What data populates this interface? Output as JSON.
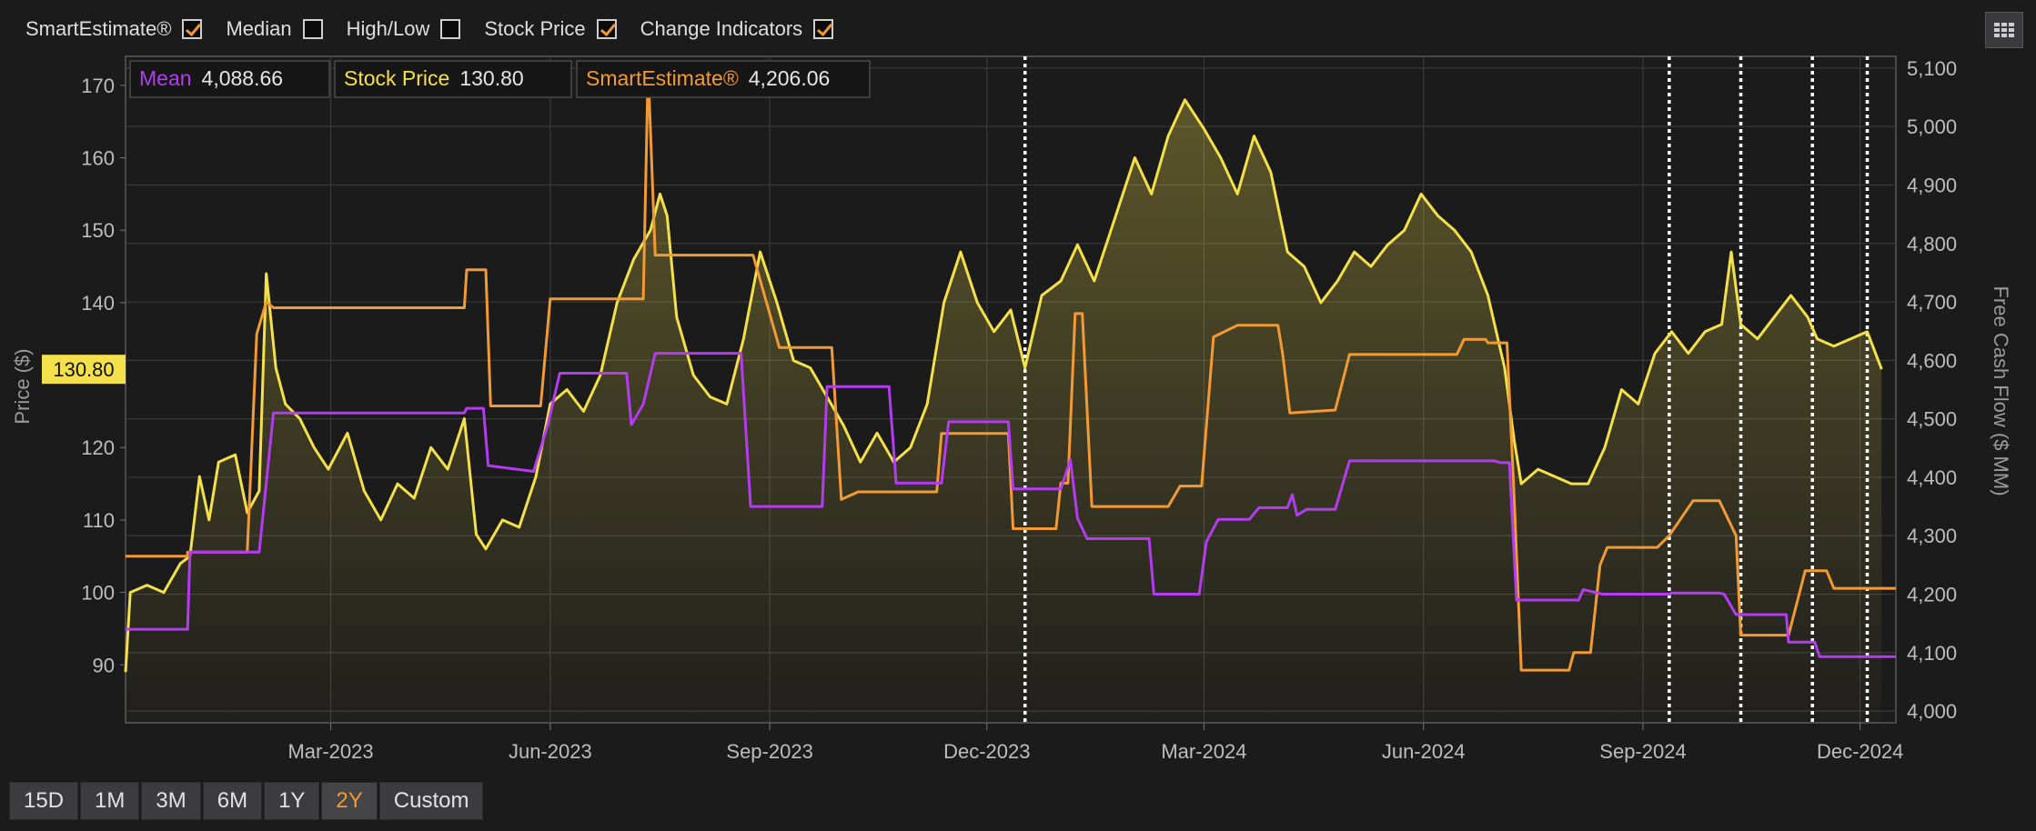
{
  "toolbar": {
    "items": [
      {
        "label": "SmartEstimate®",
        "checked": true
      },
      {
        "label": "Median",
        "checked": false
      },
      {
        "label": "High/Low",
        "checked": false
      },
      {
        "label": "Stock Price",
        "checked": true
      },
      {
        "label": "Change Indicators",
        "checked": true
      }
    ],
    "grid_icon": "grid-icon"
  },
  "legend": [
    {
      "name": "Mean",
      "value": "4,088.66",
      "color": "#b33bf0"
    },
    {
      "name": "Stock Price",
      "value": "130.80",
      "color": "#f4e04a"
    },
    {
      "name": "SmartEstimate®",
      "value": "4,206.06",
      "color": "#f29a34"
    }
  ],
  "price_tag": "130.80",
  "range_buttons": [
    {
      "label": "15D",
      "active": false
    },
    {
      "label": "1M",
      "active": false
    },
    {
      "label": "3M",
      "active": false
    },
    {
      "label": "6M",
      "active": false
    },
    {
      "label": "1Y",
      "active": false
    },
    {
      "label": "2Y",
      "active": true
    },
    {
      "label": "Custom",
      "active": false
    }
  ],
  "chart_data": {
    "type": "line",
    "ylabel_left": "Price ($)",
    "ylabel_right": "Free Cash Flow ($ MM)",
    "x_range": [
      "2022-12-05",
      "2024-12-16"
    ],
    "y_left_range": [
      82,
      174
    ],
    "y_right_range": [
      3980,
      5120
    ],
    "y_left_ticks": [
      "90",
      "100",
      "110",
      "120",
      "130",
      "140",
      "150",
      "160",
      "170"
    ],
    "y_right_ticks": [
      "4,000",
      "4,100",
      "4,200",
      "4,300",
      "4,400",
      "4,500",
      "4,600",
      "4,700",
      "4,800",
      "4,900",
      "5,000",
      "5,100"
    ],
    "x_ticks": [
      {
        "date": "2023-03-01",
        "label": "Mar-2023"
      },
      {
        "date": "2023-06-01",
        "label": "Jun-2023"
      },
      {
        "date": "2023-09-01",
        "label": "Sep-2023"
      },
      {
        "date": "2023-12-01",
        "label": "Dec-2023"
      },
      {
        "date": "2024-03-01",
        "label": "Mar-2024"
      },
      {
        "date": "2024-06-01",
        "label": "Jun-2024"
      },
      {
        "date": "2024-09-01",
        "label": "Sep-2024"
      },
      {
        "date": "2024-12-01",
        "label": "Dec-2024"
      }
    ],
    "change_indicator_dates": [
      "2023-12-17",
      "2024-09-12",
      "2024-10-12",
      "2024-11-11",
      "2024-12-04"
    ],
    "series": [
      {
        "name": "Stock Price",
        "axis": "left",
        "color": "#f4e04a",
        "fill": true,
        "points": [
          [
            "2022-12-05",
            89
          ],
          [
            "2022-12-07",
            100
          ],
          [
            "2022-12-14",
            101
          ],
          [
            "2022-12-21",
            100
          ],
          [
            "2022-12-28",
            104
          ],
          [
            "2023-01-01",
            105
          ],
          [
            "2023-01-05",
            116
          ],
          [
            "2023-01-09",
            110
          ],
          [
            "2023-01-13",
            118
          ],
          [
            "2023-01-20",
            119
          ],
          [
            "2023-01-25",
            111
          ],
          [
            "2023-01-30",
            114
          ],
          [
            "2023-02-02",
            144
          ],
          [
            "2023-02-06",
            131
          ],
          [
            "2023-02-10",
            126
          ],
          [
            "2023-02-16",
            124
          ],
          [
            "2023-02-22",
            120
          ],
          [
            "2023-02-28",
            117
          ],
          [
            "2023-03-08",
            122
          ],
          [
            "2023-03-15",
            114
          ],
          [
            "2023-03-22",
            110
          ],
          [
            "2023-03-29",
            115
          ],
          [
            "2023-04-05",
            113
          ],
          [
            "2023-04-12",
            120
          ],
          [
            "2023-04-19",
            117
          ],
          [
            "2023-04-26",
            124
          ],
          [
            "2023-05-01",
            108
          ],
          [
            "2023-05-05",
            106
          ],
          [
            "2023-05-12",
            110
          ],
          [
            "2023-05-19",
            109
          ],
          [
            "2023-05-26",
            116
          ],
          [
            "2023-06-01",
            126
          ],
          [
            "2023-06-08",
            128
          ],
          [
            "2023-06-15",
            125
          ],
          [
            "2023-06-22",
            130
          ],
          [
            "2023-06-29",
            140
          ],
          [
            "2023-07-06",
            146
          ],
          [
            "2023-07-13",
            150
          ],
          [
            "2023-07-17",
            155
          ],
          [
            "2023-07-20",
            152
          ],
          [
            "2023-07-24",
            138
          ],
          [
            "2023-07-31",
            130
          ],
          [
            "2023-08-07",
            127
          ],
          [
            "2023-08-14",
            126
          ],
          [
            "2023-08-21",
            135
          ],
          [
            "2023-08-28",
            147
          ],
          [
            "2023-09-04",
            140
          ],
          [
            "2023-09-11",
            132
          ],
          [
            "2023-09-18",
            131
          ],
          [
            "2023-09-25",
            127
          ],
          [
            "2023-10-02",
            123
          ],
          [
            "2023-10-09",
            118
          ],
          [
            "2023-10-16",
            122
          ],
          [
            "2023-10-23",
            118
          ],
          [
            "2023-10-30",
            120
          ],
          [
            "2023-11-06",
            126
          ],
          [
            "2023-11-13",
            140
          ],
          [
            "2023-11-20",
            147
          ],
          [
            "2023-11-27",
            140
          ],
          [
            "2023-12-04",
            136
          ],
          [
            "2023-12-11",
            139
          ],
          [
            "2023-12-17",
            131
          ],
          [
            "2023-12-24",
            141
          ],
          [
            "2024-01-01",
            143
          ],
          [
            "2024-01-08",
            148
          ],
          [
            "2024-01-15",
            143
          ],
          [
            "2024-01-22",
            150
          ],
          [
            "2024-02-01",
            160
          ],
          [
            "2024-02-08",
            155
          ],
          [
            "2024-02-15",
            163
          ],
          [
            "2024-02-22",
            168
          ],
          [
            "2024-03-01",
            164
          ],
          [
            "2024-03-08",
            160
          ],
          [
            "2024-03-15",
            155
          ],
          [
            "2024-03-22",
            163
          ],
          [
            "2024-03-29",
            158
          ],
          [
            "2024-04-05",
            147
          ],
          [
            "2024-04-12",
            145
          ],
          [
            "2024-04-19",
            140
          ],
          [
            "2024-04-26",
            143
          ],
          [
            "2024-05-03",
            147
          ],
          [
            "2024-05-10",
            145
          ],
          [
            "2024-05-17",
            148
          ],
          [
            "2024-05-24",
            150
          ],
          [
            "2024-05-31",
            155
          ],
          [
            "2024-06-07",
            152
          ],
          [
            "2024-06-14",
            150
          ],
          [
            "2024-06-21",
            147
          ],
          [
            "2024-06-28",
            141
          ],
          [
            "2024-07-05",
            131
          ],
          [
            "2024-07-09",
            121
          ],
          [
            "2024-07-12",
            115
          ],
          [
            "2024-07-19",
            117
          ],
          [
            "2024-07-26",
            116
          ],
          [
            "2024-08-02",
            115
          ],
          [
            "2024-08-09",
            115
          ],
          [
            "2024-08-16",
            120
          ],
          [
            "2024-08-23",
            128
          ],
          [
            "2024-08-30",
            126
          ],
          [
            "2024-09-06",
            133
          ],
          [
            "2024-09-13",
            136
          ],
          [
            "2024-09-20",
            133
          ],
          [
            "2024-09-27",
            136
          ],
          [
            "2024-10-04",
            137
          ],
          [
            "2024-10-08",
            147
          ],
          [
            "2024-10-12",
            137
          ],
          [
            "2024-10-19",
            135
          ],
          [
            "2024-10-26",
            138
          ],
          [
            "2024-11-02",
            141
          ],
          [
            "2024-11-09",
            138
          ],
          [
            "2024-11-13",
            135
          ],
          [
            "2024-11-20",
            134
          ],
          [
            "2024-11-27",
            135
          ],
          [
            "2024-12-04",
            136
          ],
          [
            "2024-12-10",
            130.8
          ]
        ]
      },
      {
        "name": "SmartEstimate®",
        "axis": "right",
        "color": "#f29a34",
        "fill": false,
        "points": [
          [
            "2022-12-05",
            4265
          ],
          [
            "2022-12-31",
            4265
          ],
          [
            "2022-12-31",
            4272
          ],
          [
            "2023-01-25",
            4272
          ],
          [
            "2023-01-29",
            4645
          ],
          [
            "2023-02-02",
            4700
          ],
          [
            "2023-02-05",
            4690
          ],
          [
            "2023-04-26",
            4690
          ],
          [
            "2023-04-27",
            4755
          ],
          [
            "2023-05-05",
            4755
          ],
          [
            "2023-05-07",
            4522
          ],
          [
            "2023-05-28",
            4522
          ],
          [
            "2023-06-01",
            4705
          ],
          [
            "2023-07-10",
            4705
          ],
          [
            "2023-07-12",
            5100
          ],
          [
            "2023-07-15",
            4780
          ],
          [
            "2023-08-25",
            4780
          ],
          [
            "2023-09-05",
            4622
          ],
          [
            "2023-09-27",
            4622
          ],
          [
            "2023-10-01",
            4362
          ],
          [
            "2023-10-08",
            4375
          ],
          [
            "2023-11-10",
            4375
          ],
          [
            "2023-11-12",
            4475
          ],
          [
            "2023-12-10",
            4475
          ],
          [
            "2023-12-12",
            4312
          ],
          [
            "2023-12-30",
            4312
          ],
          [
            "2024-01-01",
            4390
          ],
          [
            "2024-01-04",
            4390
          ],
          [
            "2024-01-07",
            4680
          ],
          [
            "2024-01-10",
            4680
          ],
          [
            "2024-01-14",
            4350
          ],
          [
            "2024-02-15",
            4350
          ],
          [
            "2024-02-20",
            4385
          ],
          [
            "2024-02-29",
            4385
          ],
          [
            "2024-03-05",
            4640
          ],
          [
            "2024-03-15",
            4660
          ],
          [
            "2024-04-01",
            4660
          ],
          [
            "2024-04-03",
            4610
          ],
          [
            "2024-04-06",
            4510
          ],
          [
            "2024-04-25",
            4515
          ],
          [
            "2024-05-01",
            4610
          ],
          [
            "2024-06-15",
            4610
          ],
          [
            "2024-06-18",
            4636
          ],
          [
            "2024-06-27",
            4636
          ],
          [
            "2024-06-28",
            4630
          ],
          [
            "2024-07-06",
            4630
          ],
          [
            "2024-07-09",
            4365
          ],
          [
            "2024-07-12",
            4070
          ],
          [
            "2024-08-01",
            4070
          ],
          [
            "2024-08-03",
            4100
          ],
          [
            "2024-08-10",
            4100
          ],
          [
            "2024-08-14",
            4250
          ],
          [
            "2024-08-17",
            4280
          ],
          [
            "2024-09-07",
            4280
          ],
          [
            "2024-09-12",
            4300
          ],
          [
            "2024-09-22",
            4360
          ],
          [
            "2024-10-03",
            4360
          ],
          [
            "2024-10-10",
            4300
          ],
          [
            "2024-10-12",
            4130
          ],
          [
            "2024-11-01",
            4130
          ],
          [
            "2024-11-08",
            4240
          ],
          [
            "2024-11-17",
            4240
          ],
          [
            "2024-11-20",
            4210
          ],
          [
            "2024-12-16",
            4210
          ]
        ]
      },
      {
        "name": "Mean",
        "axis": "right",
        "color": "#b33bf0",
        "fill": false,
        "points": [
          [
            "2022-12-05",
            4140
          ],
          [
            "2022-12-31",
            4140
          ],
          [
            "2023-01-01",
            4272
          ],
          [
            "2023-01-30",
            4272
          ],
          [
            "2023-02-05",
            4510
          ],
          [
            "2023-04-26",
            4510
          ],
          [
            "2023-04-27",
            4518
          ],
          [
            "2023-05-04",
            4518
          ],
          [
            "2023-05-06",
            4420
          ],
          [
            "2023-05-25",
            4410
          ],
          [
            "2023-05-31",
            4490
          ],
          [
            "2023-06-05",
            4578
          ],
          [
            "2023-07-03",
            4578
          ],
          [
            "2023-07-05",
            4490
          ],
          [
            "2023-07-10",
            4525
          ],
          [
            "2023-07-15",
            4612
          ],
          [
            "2023-08-20",
            4612
          ],
          [
            "2023-08-24",
            4350
          ],
          [
            "2023-09-23",
            4350
          ],
          [
            "2023-09-25",
            4555
          ],
          [
            "2023-10-21",
            4555
          ],
          [
            "2023-10-24",
            4390
          ],
          [
            "2023-11-12",
            4390
          ],
          [
            "2023-11-15",
            4495
          ],
          [
            "2023-12-10",
            4495
          ],
          [
            "2023-12-12",
            4380
          ],
          [
            "2024-01-01",
            4380
          ],
          [
            "2024-01-05",
            4430
          ],
          [
            "2024-01-08",
            4330
          ],
          [
            "2024-01-12",
            4295
          ],
          [
            "2024-02-07",
            4295
          ],
          [
            "2024-02-09",
            4200
          ],
          [
            "2024-02-28",
            4200
          ],
          [
            "2024-03-02",
            4290
          ],
          [
            "2024-03-07",
            4328
          ],
          [
            "2024-03-20",
            4328
          ],
          [
            "2024-03-24",
            4348
          ],
          [
            "2024-04-05",
            4348
          ],
          [
            "2024-04-07",
            4370
          ],
          [
            "2024-04-09",
            4335
          ],
          [
            "2024-04-13",
            4345
          ],
          [
            "2024-04-25",
            4345
          ],
          [
            "2024-05-01",
            4428
          ],
          [
            "2024-07-01",
            4428
          ],
          [
            "2024-07-03",
            4425
          ],
          [
            "2024-07-07",
            4425
          ],
          [
            "2024-07-10",
            4190
          ],
          [
            "2024-08-05",
            4190
          ],
          [
            "2024-08-07",
            4208
          ],
          [
            "2024-08-15",
            4200
          ],
          [
            "2024-09-12",
            4200
          ],
          [
            "2024-09-13",
            4202
          ],
          [
            "2024-10-03",
            4202
          ],
          [
            "2024-10-05",
            4200
          ],
          [
            "2024-10-10",
            4165
          ],
          [
            "2024-10-31",
            4165
          ],
          [
            "2024-11-01",
            4118
          ],
          [
            "2024-11-12",
            4118
          ],
          [
            "2024-11-14",
            4093
          ],
          [
            "2024-12-16",
            4093
          ]
        ]
      }
    ]
  }
}
